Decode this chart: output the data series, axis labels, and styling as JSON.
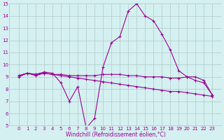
{
  "xlabel": "Windchill (Refroidissement éolien,°C)",
  "x": [
    0,
    1,
    2,
    3,
    4,
    5,
    6,
    7,
    8,
    9,
    10,
    11,
    12,
    13,
    14,
    15,
    16,
    17,
    18,
    19,
    20,
    21,
    22,
    23
  ],
  "line1": [
    9.0,
    9.3,
    9.2,
    9.4,
    9.3,
    8.5,
    7.0,
    8.2,
    4.8,
    5.6,
    9.8,
    11.8,
    12.3,
    14.4,
    15.0,
    14.0,
    13.6,
    12.5,
    11.2,
    9.5,
    9.0,
    8.7,
    8.5,
    7.5
  ],
  "line2": [
    9.1,
    9.3,
    9.2,
    9.3,
    9.2,
    9.2,
    9.1,
    9.1,
    9.1,
    9.1,
    9.2,
    9.2,
    9.2,
    9.1,
    9.1,
    9.0,
    9.0,
    9.0,
    8.9,
    8.9,
    9.0,
    9.0,
    8.7,
    7.5
  ],
  "line3": [
    9.1,
    9.3,
    9.1,
    9.3,
    9.2,
    9.1,
    9.0,
    8.9,
    8.8,
    8.7,
    8.6,
    8.5,
    8.4,
    8.3,
    8.2,
    8.1,
    8.0,
    7.9,
    7.8,
    7.8,
    7.7,
    7.6,
    7.5,
    7.4
  ],
  "line_color": "#990099",
  "bg_color": "#d5f0f0",
  "grid_color": "#b0c8c8",
  "ylim": [
    5,
    15
  ],
  "yticks": [
    5,
    6,
    7,
    8,
    9,
    10,
    11,
    12,
    13,
    14,
    15
  ],
  "xticks": [
    0,
    1,
    2,
    3,
    4,
    5,
    6,
    7,
    8,
    9,
    10,
    11,
    12,
    13,
    14,
    15,
    16,
    17,
    18,
    19,
    20,
    21,
    22,
    23
  ],
  "marker": "+",
  "markersize": 3,
  "linewidth": 0.8,
  "tick_fontsize": 5,
  "xlabel_fontsize": 5.5
}
